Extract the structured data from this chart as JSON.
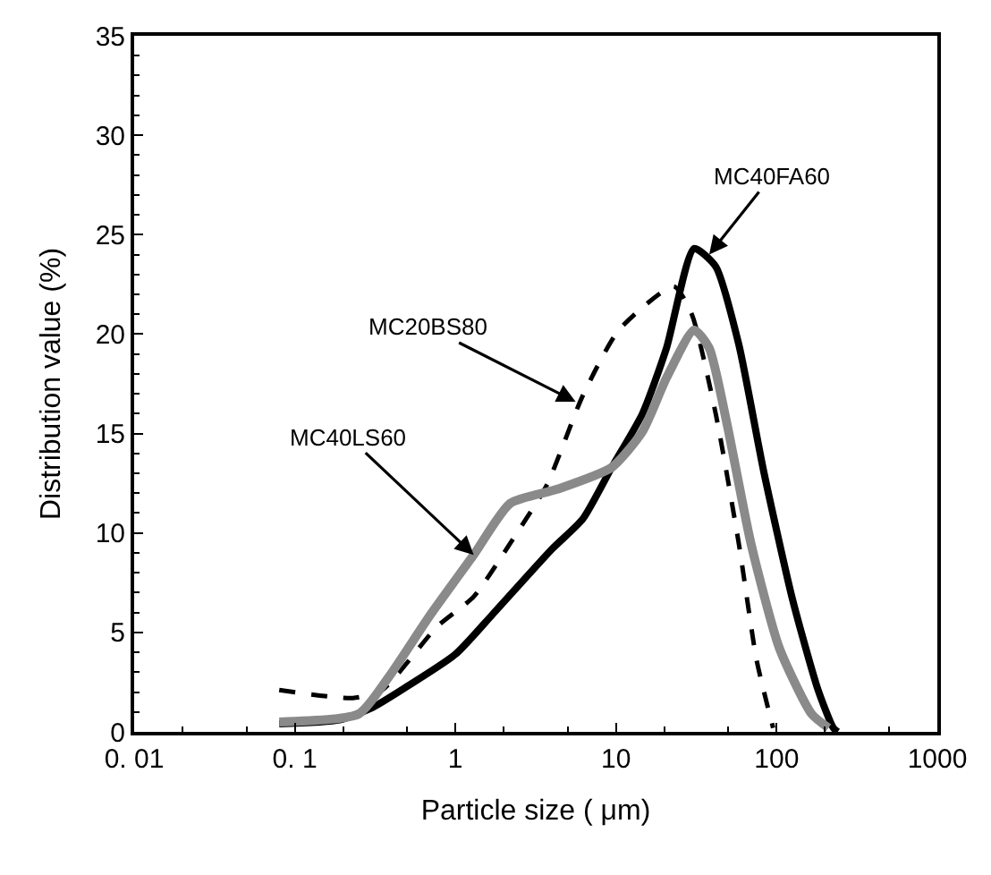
{
  "chart_data": {
    "type": "line",
    "xlabel": "Particle size ( μm)",
    "ylabel": "Distribution value (%)",
    "log": "x",
    "marker": "none",
    "xlim": [
      0.01,
      1000
    ],
    "xticks": [
      {
        "value": 0.01,
        "label": "0. 01"
      },
      {
        "value": 0.1,
        "label": "0. 1"
      },
      1,
      10,
      100,
      1000
    ],
    "ylim": [
      0,
      35
    ],
    "yticks": [
      0,
      5,
      10,
      15,
      20,
      25,
      30,
      35
    ],
    "series": [
      {
        "color": "#000000",
        "line_style": "solid",
        "x": [
          0.08,
          0.19,
          0.3,
          0.46,
          1.0,
          1.7,
          4.0,
          6.2,
          9.4,
          14.6,
          20.6,
          30.6,
          41.7,
          58,
          83,
          126,
          181,
          225,
          240
        ],
        "values": [
          0.4,
          0.6,
          1.2,
          2.1,
          3.9,
          5.9,
          9.2,
          10.7,
          13.3,
          16.0,
          19.3,
          24.3,
          23.4,
          19.5,
          13.1,
          6.6,
          2.1,
          0.2,
          0
        ]
      },
      {
        "color": "#000000",
        "line_style": "dashed",
        "x": [
          0.08,
          0.23,
          0.35,
          0.77,
          1.3,
          2.2,
          3.7,
          6.2,
          10.4,
          22.9,
          29.6,
          41.7,
          58,
          75,
          95
        ],
        "values": [
          2.1,
          1.7,
          2.1,
          5.3,
          6.8,
          9.5,
          12.4,
          16.9,
          20.2,
          22.4,
          21.0,
          16.0,
          9.5,
          3.6,
          0.2
        ]
      },
      {
        "color": "#8a8a8a",
        "line_style": "solid",
        "x": [
          0.08,
          0.25,
          0.38,
          0.7,
          1.3,
          2.2,
          4.3,
          9.4,
          14.6,
          20.6,
          30.6,
          38,
          49,
          69,
          104,
          165,
          210
        ],
        "values": [
          0.5,
          0.9,
          2.7,
          5.9,
          8.9,
          11.5,
          12.2,
          13.3,
          15.1,
          17.8,
          20.2,
          19.3,
          15.5,
          9.5,
          4.2,
          0.9,
          0.2
        ]
      }
    ],
    "annotations": [
      {
        "text": "MC40FA60",
        "x": 38,
        "y": 24
      },
      {
        "text": "MC20BS80",
        "x": 5.6,
        "y": 16.6
      },
      {
        "text": "MC40LS60",
        "x": 1.3,
        "y": 8.9
      }
    ]
  }
}
